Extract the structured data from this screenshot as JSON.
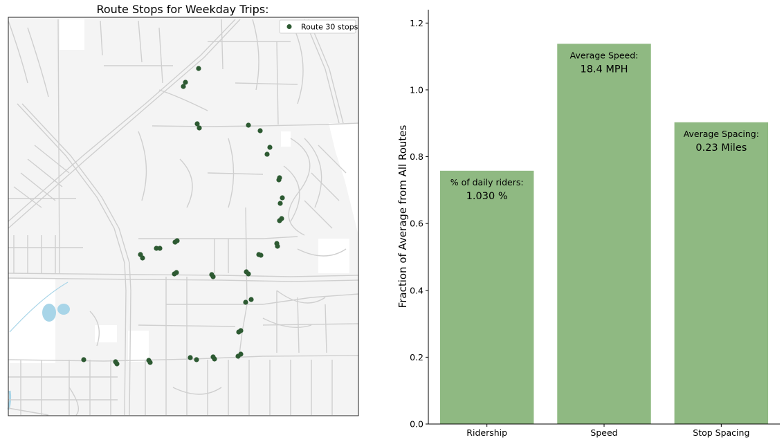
{
  "map": {
    "title": "Route Stops for Weekday Trips:",
    "legend_label": "Route 30 stops",
    "stop_color": "#2d5a32",
    "background_color": "#f4f4f4",
    "street_color": "#cfcfcf",
    "water_color": "#a8d5e8"
  },
  "chart_data": {
    "type": "bar",
    "categories": [
      "Ridership",
      "Speed",
      "Stop Spacing"
    ],
    "values": [
      0.758,
      1.138,
      0.903
    ],
    "ylabel": "Fraction of Average from All Routes",
    "xlabel": "",
    "ylim": [
      0,
      1.24
    ],
    "yticks": [
      "0.0",
      "0.2",
      "0.4",
      "0.6",
      "0.8",
      "1.0",
      "1.2"
    ],
    "bar_color": "#8fb982",
    "annotations": [
      {
        "label": "% of daily riders:",
        "value": "1.030 %"
      },
      {
        "label": "Average Speed:",
        "value": "18.4 MPH"
      },
      {
        "label": "Average Spacing:",
        "value": "0.23 Miles"
      }
    ]
  }
}
